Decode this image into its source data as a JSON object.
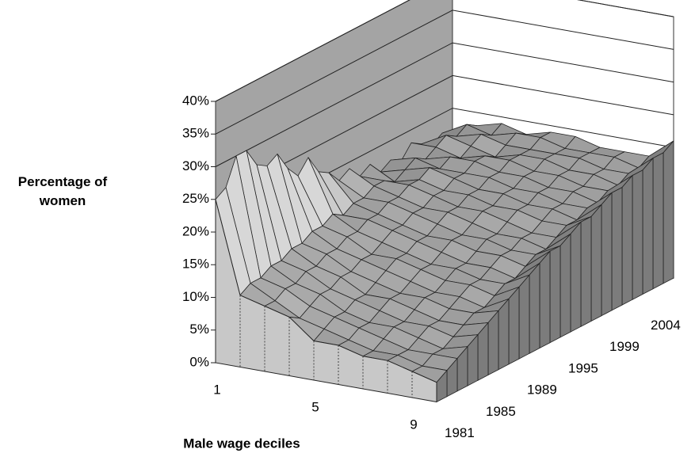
{
  "chart_data": {
    "type": "surface3d",
    "ylabel": "Percentage of women",
    "xlabel": "Male wage deciles",
    "categories": [
      "1",
      null,
      null,
      null,
      "5",
      null,
      null,
      null,
      "9",
      null
    ],
    "z_categories": [
      "1981",
      null,
      null,
      null,
      "1985",
      null,
      null,
      null,
      "1989",
      null,
      null,
      null,
      "1995",
      null,
      null,
      null,
      "1999",
      null,
      null,
      null,
      "2004",
      null,
      null,
      null
    ],
    "ylim": [
      0,
      40
    ],
    "yticks": [
      {
        "value": 0,
        "label": "0%"
      },
      {
        "value": 5,
        "label": "5%"
      },
      {
        "value": 10,
        "label": "10%"
      },
      {
        "value": 15,
        "label": "15%"
      },
      {
        "value": 20,
        "label": "20%"
      },
      {
        "value": 25,
        "label": "25%"
      },
      {
        "value": 30,
        "label": "30%"
      },
      {
        "value": 35,
        "label": "35%"
      },
      {
        "value": 40,
        "label": "40%"
      }
    ],
    "grid": true,
    "values": [
      [
        25,
        11,
        10,
        9,
        6,
        6,
        5,
        5,
        4,
        3
      ],
      [
        26,
        12,
        10,
        8,
        7,
        6,
        5,
        5,
        4,
        4
      ],
      [
        30,
        12,
        11,
        9,
        8,
        7,
        6,
        5,
        5,
        5
      ],
      [
        30,
        13,
        11,
        10,
        8,
        7,
        7,
        6,
        5,
        6
      ],
      [
        27,
        13,
        12,
        10,
        9,
        8,
        7,
        7,
        6,
        7
      ],
      [
        26,
        14,
        12,
        11,
        9,
        9,
        8,
        7,
        7,
        8
      ],
      [
        27,
        14,
        13,
        11,
        10,
        9,
        9,
        8,
        8,
        9
      ],
      [
        24,
        15,
        13,
        12,
        11,
        10,
        9,
        9,
        8,
        10
      ],
      [
        22,
        15,
        14,
        12,
        12,
        11,
        10,
        10,
        9,
        11
      ],
      [
        24,
        16,
        14,
        13,
        12,
        11,
        11,
        10,
        10,
        12
      ],
      [
        21,
        15,
        15,
        14,
        13,
        12,
        11,
        11,
        10,
        13
      ],
      [
        20,
        16,
        15,
        14,
        13,
        13,
        12,
        12,
        11,
        14
      ],
      [
        18,
        16,
        16,
        15,
        14,
        13,
        13,
        12,
        12,
        14
      ],
      [
        19,
        17,
        16,
        15,
        15,
        14,
        13,
        13,
        12,
        15
      ],
      [
        17,
        17,
        17,
        16,
        15,
        15,
        14,
        13,
        13,
        16
      ],
      [
        18,
        16,
        17,
        16,
        16,
        15,
        15,
        14,
        14,
        16
      ],
      [
        16,
        17,
        18,
        17,
        16,
        16,
        15,
        15,
        14,
        17
      ],
      [
        17,
        18,
        17,
        17,
        17,
        16,
        16,
        15,
        15,
        18
      ],
      [
        16,
        17,
        18,
        18,
        17,
        17,
        16,
        16,
        15,
        18
      ],
      [
        18,
        18,
        17,
        18,
        18,
        17,
        17,
        16,
        16,
        19
      ],
      [
        17,
        19,
        18,
        17,
        18,
        18,
        17,
        17,
        16,
        19
      ],
      [
        16,
        18,
        19,
        18,
        18,
        18,
        18,
        17,
        17,
        20
      ],
      [
        17,
        19,
        18,
        19,
        19,
        18,
        18,
        18,
        17,
        20
      ],
      [
        16,
        18,
        19,
        18,
        19,
        19,
        18,
        18,
        18,
        21
      ]
    ]
  }
}
